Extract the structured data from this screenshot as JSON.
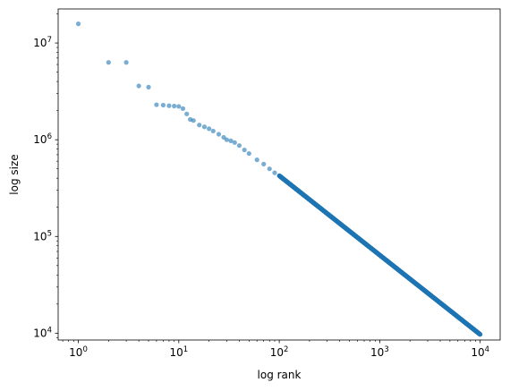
{
  "chart_data": {
    "type": "scatter",
    "title": "",
    "xlabel": "log rank",
    "ylabel": "log size",
    "xscale": "log",
    "yscale": "log",
    "xlim": [
      0.63,
      15800
    ],
    "ylim": [
      8500,
      22500000
    ],
    "grid": false,
    "point_color": "#1f77b4",
    "point_alpha": 0.6,
    "xticks": [
      {
        "value": 1,
        "base": "10",
        "exp": "0"
      },
      {
        "value": 10,
        "base": "10",
        "exp": "1"
      },
      {
        "value": 100,
        "base": "10",
        "exp": "2"
      },
      {
        "value": 1000,
        "base": "10",
        "exp": "3"
      },
      {
        "value": 10000,
        "base": "10",
        "exp": "4"
      }
    ],
    "yticks": [
      {
        "value": 10000,
        "base": "10",
        "exp": "4"
      },
      {
        "value": 100000,
        "base": "10",
        "exp": "5"
      },
      {
        "value": 1000000,
        "base": "10",
        "exp": "6"
      },
      {
        "value": 10000000,
        "base": "10",
        "exp": "7"
      }
    ],
    "points": [
      [
        1,
        15800000
      ],
      [
        2,
        6300000
      ],
      [
        3,
        6300000
      ],
      [
        4,
        3600000
      ],
      [
        5,
        3500000
      ],
      [
        6,
        2300000
      ],
      [
        7,
        2280000
      ],
      [
        8,
        2250000
      ],
      [
        9,
        2230000
      ],
      [
        10,
        2210000
      ],
      [
        11,
        2100000
      ],
      [
        12,
        1850000
      ],
      [
        13,
        1620000
      ],
      [
        14,
        1580000
      ],
      [
        16,
        1420000
      ],
      [
        18,
        1360000
      ],
      [
        20,
        1300000
      ],
      [
        22,
        1230000
      ],
      [
        25,
        1140000
      ],
      [
        28,
        1060000
      ],
      [
        30,
        1000000
      ],
      [
        33,
        975000
      ],
      [
        36,
        935000
      ],
      [
        40,
        870000
      ],
      [
        45,
        785000
      ],
      [
        50,
        720000
      ],
      [
        60,
        620000
      ],
      [
        70,
        560000
      ],
      [
        80,
        500000
      ],
      [
        90,
        455000
      ],
      [
        100,
        425000
      ]
    ],
    "power_tail": {
      "x_start": 100,
      "x_end": 10000,
      "y_start": 425000,
      "y_end": 9700,
      "count": 1500
    }
  }
}
